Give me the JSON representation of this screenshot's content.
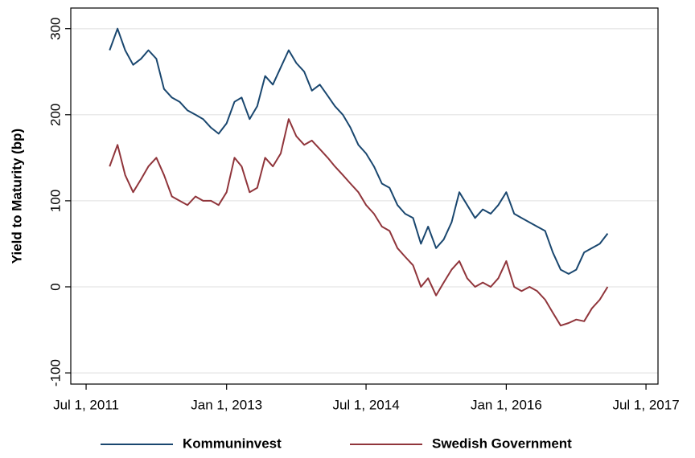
{
  "chart_data": {
    "type": "line",
    "y_label": "Yield to Maturity (bp)",
    "x": [
      "2011-10-01",
      "2011-11-01",
      "2011-12-01",
      "2012-01-01",
      "2012-02-01",
      "2012-03-01",
      "2012-04-01",
      "2012-05-01",
      "2012-06-01",
      "2012-07-01",
      "2012-08-01",
      "2012-09-01",
      "2012-10-01",
      "2012-11-01",
      "2012-12-01",
      "2013-01-01",
      "2013-02-01",
      "2013-03-01",
      "2013-04-01",
      "2013-05-01",
      "2013-06-01",
      "2013-07-01",
      "2013-08-01",
      "2013-09-01",
      "2013-10-01",
      "2013-11-01",
      "2013-12-01",
      "2014-01-01",
      "2014-02-01",
      "2014-03-01",
      "2014-04-01",
      "2014-05-01",
      "2014-06-01",
      "2014-07-01",
      "2014-08-01",
      "2014-09-01",
      "2014-10-01",
      "2014-11-01",
      "2014-12-01",
      "2015-01-01",
      "2015-02-01",
      "2015-03-01",
      "2015-04-01",
      "2015-05-01",
      "2015-06-01",
      "2015-07-01",
      "2015-08-01",
      "2015-09-01",
      "2015-10-01",
      "2015-11-01",
      "2015-12-01",
      "2016-01-01",
      "2016-02-01",
      "2016-03-01",
      "2016-04-01",
      "2016-05-01",
      "2016-06-01",
      "2016-07-01",
      "2016-08-01",
      "2016-09-01",
      "2016-10-01",
      "2016-11-01",
      "2016-12-01",
      "2017-01-01",
      "2017-02-01"
    ],
    "series": [
      {
        "name": "Kommuninvest",
        "color": "#1a476f",
        "values": [
          275,
          300,
          275,
          258,
          265,
          275,
          265,
          230,
          220,
          215,
          205,
          200,
          195,
          185,
          178,
          190,
          215,
          220,
          195,
          210,
          245,
          235,
          255,
          275,
          260,
          250,
          228,
          235,
          222,
          210,
          200,
          185,
          165,
          155,
          140,
          120,
          115,
          95,
          85,
          80,
          50,
          70,
          45,
          55,
          75,
          110,
          95,
          80,
          90,
          85,
          95,
          110,
          85,
          80,
          75,
          70,
          65,
          40,
          20,
          15,
          20,
          40,
          45,
          50,
          62
        ]
      },
      {
        "name": "Swedish Government",
        "color": "#90353b",
        "values": [
          140,
          165,
          130,
          110,
          125,
          140,
          150,
          130,
          105,
          100,
          95,
          105,
          100,
          100,
          95,
          110,
          150,
          140,
          110,
          115,
          150,
          140,
          155,
          195,
          175,
          165,
          170,
          160,
          150,
          140,
          130,
          120,
          110,
          95,
          85,
          70,
          65,
          45,
          35,
          25,
          0,
          10,
          -10,
          5,
          20,
          30,
          10,
          0,
          5,
          0,
          10,
          30,
          0,
          -5,
          0,
          -5,
          -15,
          -30,
          -45,
          -42,
          -38,
          -40,
          -25,
          -15,
          0
        ]
      }
    ],
    "xlim": [
      "2011-05-02",
      "2017-08-17"
    ],
    "xticks": [
      {
        "value": "2011-07-01",
        "label": "Jul 1, 2011"
      },
      {
        "value": "2013-01-01",
        "label": "Jan 1, 2013"
      },
      {
        "value": "2014-07-01",
        "label": "Jul 1, 2014"
      },
      {
        "value": "2016-01-01",
        "label": "Jan 1, 2016"
      },
      {
        "value": "2017-07-01",
        "label": "Jul 1, 2017"
      }
    ],
    "ylim": [
      -113,
      324
    ],
    "yticks": [
      -100,
      0,
      100,
      200,
      300
    ],
    "grid": true,
    "legend": "bottom"
  }
}
